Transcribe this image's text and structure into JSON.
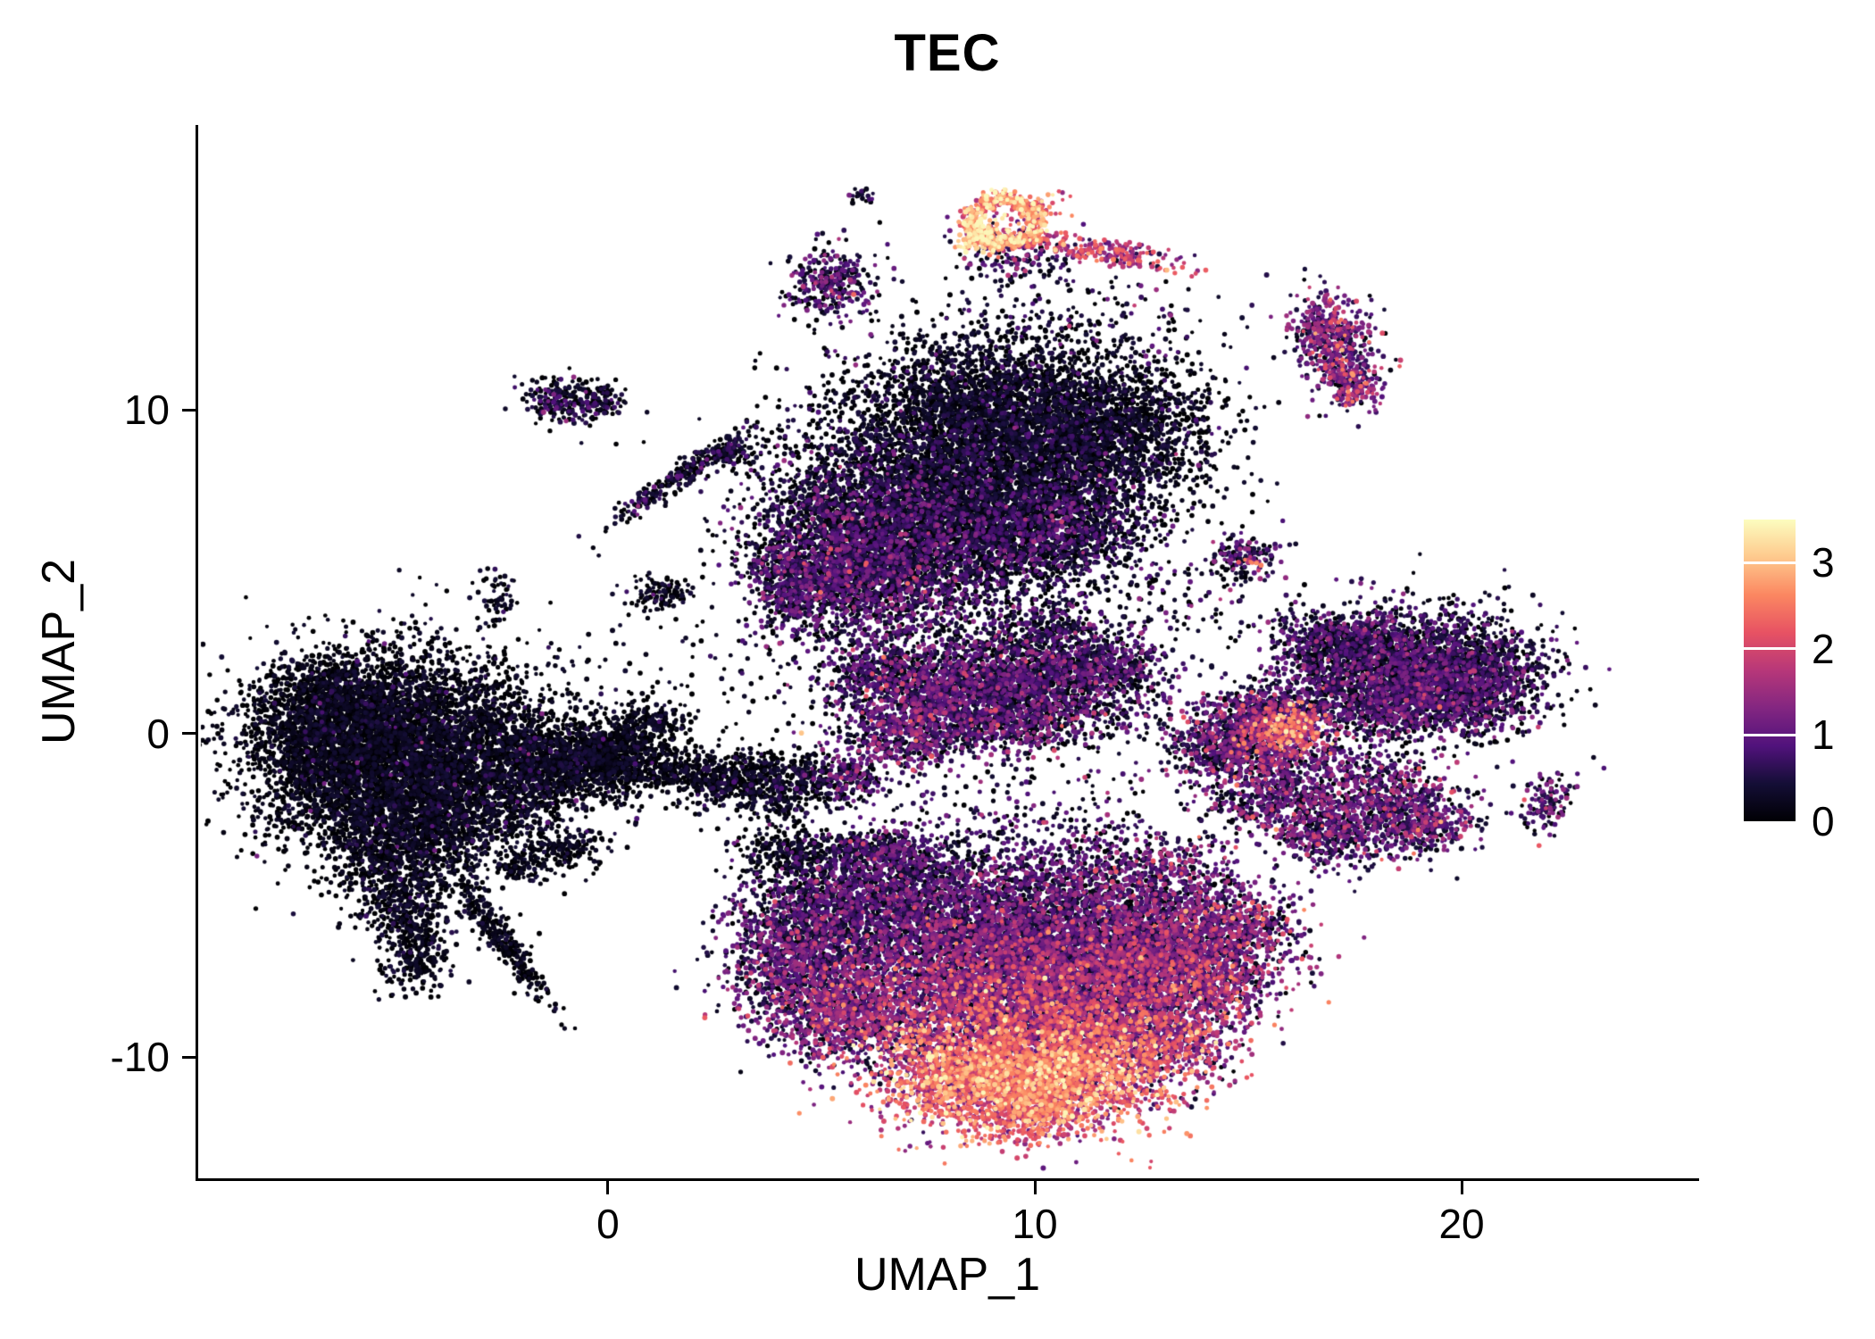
{
  "title": "TEC",
  "colors": {
    "background": "#ffffff",
    "axis": "#000000",
    "text": "#000000"
  },
  "chart_data": {
    "type": "scatter",
    "title": "TEC",
    "xlabel": "UMAP_1",
    "ylabel": "UMAP_2",
    "xlim": [
      -9.6,
      25.5
    ],
    "ylim": [
      -13.75,
      18.8
    ],
    "x_ticks": [
      0,
      10,
      20
    ],
    "y_ticks": [
      -10,
      0,
      10
    ],
    "grid": false,
    "legend_position": "right",
    "point_radius_px": 2.5,
    "point_count_approx": 64000,
    "color_scale": {
      "name": "magma",
      "domain": [
        0,
        3.5
      ],
      "ticks": [
        0,
        1,
        2,
        3
      ],
      "stops": [
        {
          "t": 0.0,
          "color": "#000004"
        },
        {
          "t": 0.125,
          "color": "#140e36"
        },
        {
          "t": 0.25,
          "color": "#51127c"
        },
        {
          "t": 0.375,
          "color": "#832681"
        },
        {
          "t": 0.5,
          "color": "#b73779"
        },
        {
          "t": 0.625,
          "color": "#e75263"
        },
        {
          "t": 0.75,
          "color": "#fb8761"
        },
        {
          "t": 0.875,
          "color": "#fec98d"
        },
        {
          "t": 1.0,
          "color": "#fcfdbf"
        }
      ]
    },
    "cluster_fields": [
      "x",
      "y",
      "rx",
      "ry",
      "n",
      "expr_mean",
      "expr_sd",
      "angle_deg",
      "shape"
    ],
    "clusters": [
      [
        -5.5,
        0.5,
        1.5,
        1.1,
        1800,
        0.05,
        0.22
      ],
      [
        -4.0,
        -0.5,
        1.8,
        1.5,
        2600,
        0.05,
        0.22
      ],
      [
        -5.8,
        -1.5,
        1.4,
        1.2,
        1500,
        0.05,
        0.22
      ],
      [
        -2.8,
        -1.8,
        1.2,
        1.0,
        1000,
        0.08,
        0.25
      ],
      [
        -4.5,
        -3.0,
        1.0,
        0.8,
        700,
        0.08,
        0.25
      ],
      [
        -6.8,
        -0.2,
        0.8,
        0.9,
        500,
        0.05,
        0.2
      ],
      [
        -6.3,
        1.2,
        0.7,
        0.6,
        350,
        0.05,
        0.2
      ],
      [
        -5.0,
        -4.5,
        0.7,
        0.8,
        450,
        0.08,
        0.25
      ],
      [
        -4.6,
        -6.0,
        0.5,
        0.8,
        300,
        0.08,
        0.25
      ],
      [
        -4.4,
        -7.2,
        0.3,
        0.4,
        120,
        0.05,
        0.2
      ],
      [
        -2.55,
        -6.3,
        1.15,
        0.18,
        320,
        0.05,
        0.2,
        -61
      ],
      [
        -1.5,
        -0.8,
        0.7,
        0.6,
        500,
        0.08,
        0.25
      ],
      [
        -0.3,
        -1.0,
        0.6,
        0.5,
        350,
        0.08,
        0.25
      ],
      [
        0.3,
        -0.8,
        0.7,
        0.55,
        450,
        0.05,
        0.22
      ],
      [
        0.9,
        0.2,
        0.5,
        0.4,
        250,
        0.05,
        0.22
      ],
      [
        -1.0,
        -3.6,
        0.45,
        0.3,
        150,
        0.05,
        0.2
      ],
      [
        -2.0,
        -4.1,
        0.35,
        0.25,
        100,
        0.05,
        0.2
      ],
      [
        -2.6,
        4.3,
        0.25,
        0.4,
        60,
        0.1,
        0.3
      ],
      [
        1.2,
        4.3,
        0.4,
        0.3,
        110,
        0.1,
        0.3
      ],
      [
        -1.2,
        10.2,
        0.45,
        0.35,
        180,
        0.25,
        0.45
      ],
      [
        -0.2,
        10.3,
        0.35,
        0.3,
        120,
        0.15,
        0.35
      ],
      [
        1.75,
        8.0,
        1.1,
        0.16,
        280,
        0.2,
        0.4,
        41
      ],
      [
        2.9,
        8.7,
        0.3,
        0.25,
        90,
        0.2,
        0.4
      ],
      [
        2.7,
        -1.4,
        0.6,
        0.45,
        350,
        0.08,
        0.25
      ],
      [
        4.1,
        -1.6,
        0.7,
        0.5,
        450,
        0.1,
        0.3
      ],
      [
        5.6,
        -1.4,
        0.45,
        0.35,
        200,
        0.5,
        0.55
      ],
      [
        4.3,
        -3.7,
        0.6,
        0.4,
        280,
        0.08,
        0.25
      ],
      [
        5.7,
        -3.5,
        0.35,
        0.3,
        130,
        0.3,
        0.45
      ],
      [
        6.9,
        -3.7,
        0.45,
        0.35,
        200,
        0.5,
        0.5
      ],
      [
        6.0,
        6.0,
        1.3,
        1.2,
        1800,
        0.45,
        0.5
      ],
      [
        5.0,
        4.8,
        0.8,
        0.7,
        600,
        0.5,
        0.5
      ],
      [
        7.5,
        7.5,
        1.8,
        1.5,
        3000,
        0.15,
        0.32
      ],
      [
        10.0,
        9.0,
        1.9,
        1.6,
        3200,
        0.1,
        0.28
      ],
      [
        11.8,
        9.5,
        1.2,
        1.0,
        1000,
        0.15,
        0.3
      ],
      [
        8.5,
        10.5,
        1.3,
        0.9,
        900,
        0.1,
        0.28
      ],
      [
        9.0,
        6.0,
        1.5,
        1.0,
        1200,
        0.3,
        0.45
      ],
      [
        11.0,
        6.5,
        1.0,
        0.8,
        600,
        0.35,
        0.5
      ],
      [
        7.0,
        4.5,
        1.0,
        0.8,
        600,
        0.5,
        0.55
      ],
      [
        4.2,
        4.4,
        0.35,
        0.7,
        250,
        0.5,
        0.5,
        15
      ],
      [
        9.5,
        12.3,
        1.2,
        0.9,
        120,
        0.3,
        0.5
      ],
      [
        5.9,
        16.6,
        0.15,
        0.12,
        25,
        0.2,
        0.35
      ],
      [
        5.2,
        13.9,
        0.5,
        0.6,
        320,
        0.55,
        0.55
      ],
      [
        9.3,
        15.8,
        0.8,
        0.7,
        520,
        2.6,
        0.55,
        0,
        "ring"
      ],
      [
        8.8,
        15.4,
        0.3,
        0.28,
        140,
        3.1,
        0.3
      ],
      [
        9.9,
        16.3,
        0.4,
        0.2,
        80,
        2.2,
        0.5
      ],
      [
        11.0,
        15.0,
        1.2,
        0.17,
        230,
        1.7,
        0.6,
        -12
      ],
      [
        12.1,
        14.8,
        0.25,
        0.2,
        60,
        1.4,
        0.5
      ],
      [
        9.5,
        14.6,
        0.6,
        0.4,
        120,
        0.5,
        0.5
      ],
      [
        16.9,
        12.6,
        0.45,
        0.55,
        300,
        1.0,
        0.6
      ],
      [
        17.2,
        11.5,
        0.45,
        0.6,
        300,
        0.9,
        0.6
      ],
      [
        17.5,
        10.7,
        0.3,
        0.35,
        130,
        1.2,
        0.6
      ],
      [
        7.3,
        1.0,
        1.0,
        0.8,
        900,
        0.6,
        0.55
      ],
      [
        8.8,
        1.5,
        1.3,
        0.9,
        1300,
        0.5,
        0.5
      ],
      [
        10.5,
        1.8,
        1.0,
        0.7,
        700,
        0.5,
        0.5
      ],
      [
        11.7,
        2.1,
        0.7,
        0.5,
        350,
        0.4,
        0.5
      ],
      [
        7.0,
        -0.2,
        0.8,
        0.5,
        400,
        0.7,
        0.6
      ],
      [
        9.6,
        0.3,
        1.0,
        0.5,
        450,
        0.6,
        0.55
      ],
      [
        10.2,
        3.3,
        0.6,
        0.5,
        250,
        0.35,
        0.5
      ],
      [
        6.3,
        1.9,
        0.5,
        0.4,
        200,
        0.4,
        0.5
      ],
      [
        14.9,
        5.4,
        0.4,
        0.35,
        150,
        0.5,
        0.5
      ],
      [
        15.1,
        5.3,
        0.12,
        0.1,
        12,
        2.2,
        0.4
      ],
      [
        15.0,
        0.0,
        0.8,
        0.6,
        600,
        0.9,
        0.7
      ],
      [
        16.0,
        0.1,
        0.5,
        0.45,
        350,
        2.0,
        0.6
      ],
      [
        14.4,
        -0.4,
        0.6,
        0.4,
        300,
        0.4,
        0.45
      ],
      [
        15.3,
        0.8,
        0.6,
        0.3,
        200,
        0.6,
        0.5
      ],
      [
        15.6,
        -1.8,
        0.9,
        0.7,
        600,
        0.7,
        0.6
      ],
      [
        18.0,
        -2.2,
        1.0,
        0.8,
        800,
        0.7,
        0.6
      ],
      [
        19.2,
        -2.7,
        0.6,
        0.5,
        300,
        0.8,
        0.6
      ],
      [
        16.8,
        -3.2,
        0.7,
        0.5,
        300,
        0.7,
        0.6
      ],
      [
        17.8,
        2.0,
        1.1,
        0.9,
        1300,
        0.45,
        0.5
      ],
      [
        19.3,
        2.2,
        1.2,
        0.9,
        1300,
        0.4,
        0.45
      ],
      [
        20.3,
        1.4,
        0.9,
        0.7,
        700,
        0.45,
        0.5
      ],
      [
        18.5,
        0.9,
        1.2,
        0.6,
        700,
        0.55,
        0.55
      ],
      [
        17.0,
        2.9,
        0.7,
        0.4,
        300,
        0.4,
        0.45
      ],
      [
        22.0,
        -2.1,
        0.3,
        0.5,
        140,
        0.7,
        0.55,
        -20
      ],
      [
        5.0,
        -5.5,
        1.0,
        0.8,
        700,
        0.5,
        0.5
      ],
      [
        6.5,
        -5.0,
        1.2,
        0.8,
        900,
        0.45,
        0.5
      ],
      [
        4.3,
        -6.5,
        0.8,
        0.7,
        500,
        0.6,
        0.55
      ],
      [
        4.5,
        -7.8,
        0.8,
        0.8,
        600,
        0.8,
        0.6
      ],
      [
        5.8,
        -8.8,
        1.0,
        0.8,
        800,
        1.0,
        0.6
      ],
      [
        8.0,
        -6.5,
        1.5,
        1.1,
        1800,
        0.7,
        0.55
      ],
      [
        10.5,
        -6.0,
        1.5,
        1.1,
        1800,
        0.6,
        0.55
      ],
      [
        12.5,
        -6.5,
        1.2,
        1.0,
        1200,
        0.8,
        0.6
      ],
      [
        9.0,
        -8.2,
        1.8,
        1.2,
        2500,
        1.1,
        0.6
      ],
      [
        11.5,
        -8.5,
        1.5,
        1.1,
        1800,
        1.2,
        0.65
      ],
      [
        9.5,
        -10.2,
        1.5,
        1.0,
        1800,
        2.1,
        0.6
      ],
      [
        10.8,
        -10.8,
        1.1,
        0.8,
        900,
        2.3,
        0.55
      ],
      [
        8.3,
        -10.8,
        0.9,
        0.7,
        700,
        2.2,
        0.6
      ],
      [
        9.8,
        -11.6,
        0.7,
        0.5,
        350,
        2.0,
        0.55
      ],
      [
        13.8,
        -6.8,
        1.1,
        0.9,
        900,
        1.0,
        0.7
      ],
      [
        14.8,
        -5.9,
        0.7,
        0.6,
        350,
        0.8,
        0.6
      ],
      [
        14.2,
        -7.8,
        0.6,
        0.5,
        250,
        1.2,
        0.7
      ],
      [
        12.8,
        -9.5,
        1.0,
        0.8,
        700,
        1.5,
        0.7
      ],
      [
        8.5,
        -4.2,
        2.0,
        0.8,
        350,
        0.5,
        0.5
      ],
      [
        11.5,
        -4.4,
        1.5,
        0.8,
        300,
        0.6,
        0.6
      ],
      [
        13.2,
        -4.2,
        0.8,
        0.6,
        250,
        0.9,
        0.7
      ],
      [
        9.5,
        -2.5,
        2.2,
        1.0,
        220,
        0.4,
        0.5
      ],
      [
        2.0,
        1.5,
        1.8,
        1.5,
        120,
        0.08,
        0.25
      ],
      [
        12.5,
        12.8,
        1.2,
        0.8,
        60,
        0.6,
        0.6
      ],
      [
        13.0,
        3.8,
        1.2,
        0.8,
        120,
        0.4,
        0.5
      ],
      [
        16.5,
        -0.9,
        1.0,
        0.6,
        150,
        0.5,
        0.5
      ],
      [
        6.0,
        2.9,
        1.2,
        0.6,
        150,
        0.4,
        0.5
      ],
      [
        12.2,
        0.8,
        0.8,
        0.6,
        120,
        0.4,
        0.5
      ],
      [
        1.5,
        -1.2,
        0.4,
        0.3,
        120,
        0.05,
        0.2
      ],
      [
        -4.5,
        -0.8,
        2.2,
        1.6,
        60,
        0.9,
        0.35
      ],
      [
        9.0,
        8.5,
        2.5,
        2.0,
        80,
        0.9,
        0.35
      ]
    ]
  }
}
